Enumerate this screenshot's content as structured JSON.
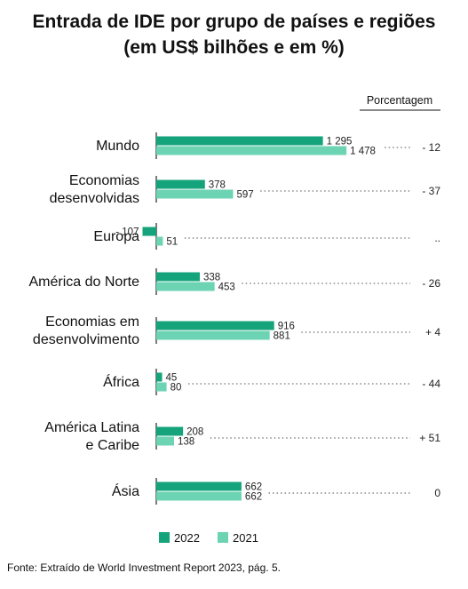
{
  "title": {
    "line1": "Entrada de IDE por grupo de países e regiões",
    "line2": "(em US$ bilhões e em %)"
  },
  "source": "Fonte: Extraído de World Investment Report 2023, pág. 5.",
  "colors": {
    "series_2022": "#15a37b",
    "series_2021": "#6cd3b3",
    "text": "#111111",
    "dots": "#888888"
  },
  "chart_data": {
    "type": "bar",
    "orientation": "horizontal",
    "categories": [
      [
        "Mundo"
      ],
      [
        "Economias",
        "desenvolvidas"
      ],
      [
        "Europa"
      ],
      [
        "América do Norte"
      ],
      [
        "Economias em",
        "desenvolvimento"
      ],
      [
        "África"
      ],
      [
        "América Latina",
        "e Caribe"
      ],
      [
        "Ásia"
      ]
    ],
    "series": [
      {
        "name": "2022",
        "values": [
          1295,
          378,
          -107,
          338,
          916,
          45,
          208,
          662
        ],
        "labels": [
          "1 295",
          "378",
          "- 107",
          "338",
          "916",
          "45",
          "208",
          "662"
        ]
      },
      {
        "name": "2021",
        "values": [
          1478,
          597,
          51,
          453,
          881,
          80,
          138,
          662
        ],
        "labels": [
          "1 478",
          "597",
          "51",
          "453",
          "881",
          "80",
          "138",
          "662"
        ]
      }
    ],
    "percentage_header": "Porcentagem",
    "percentage_change": [
      "- 12",
      "- 37",
      "..",
      "- 26",
      "+ 4",
      "- 44",
      "+ 51",
      "0"
    ],
    "legend": [
      "2022",
      "2021"
    ],
    "legend_position": "bottom-left",
    "grid": false
  }
}
